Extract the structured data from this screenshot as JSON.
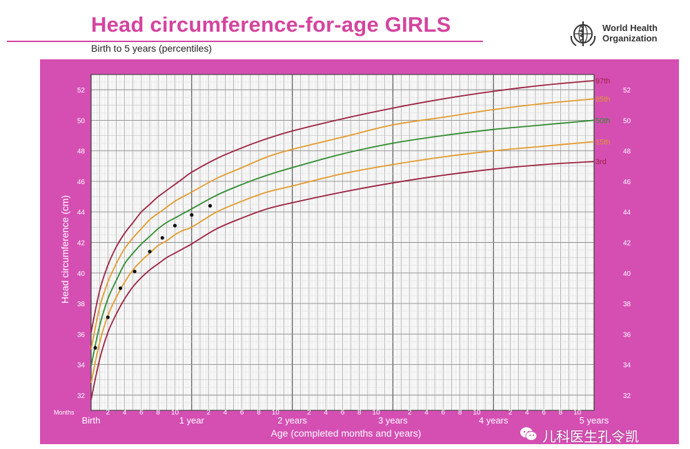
{
  "header": {
    "title": "Head circumference-for-age  GIRLS",
    "subtitle": "Birth to 5 years (percentiles)",
    "organization": "World Health\nOrganization"
  },
  "watermark": {
    "text": "儿科医生孔令凯",
    "icon": "wechat-icon"
  },
  "colors": {
    "brand": "#d4449f",
    "panel": "#d54fb3",
    "p3_97": "#9b2040",
    "p15_85": "#e29a2c",
    "p50": "#2e8b2e",
    "points": "#111111"
  },
  "chart_data": {
    "type": "line",
    "xlabel": "Age (completed months and years)",
    "ylabel": "Head circumference (cm)",
    "x_units_label": "Months",
    "xlim": [
      0,
      60
    ],
    "ylim": [
      31,
      53
    ],
    "x_ticks": [
      {
        "x": 0,
        "label": "Birth"
      },
      {
        "x": 2,
        "label": "2"
      },
      {
        "x": 4,
        "label": "4"
      },
      {
        "x": 6,
        "label": "6"
      },
      {
        "x": 8,
        "label": "8"
      },
      {
        "x": 10,
        "label": "10"
      },
      {
        "x": 12,
        "label": "1 year"
      },
      {
        "x": 14,
        "label": "2"
      },
      {
        "x": 16,
        "label": "4"
      },
      {
        "x": 18,
        "label": "6"
      },
      {
        "x": 20,
        "label": "8"
      },
      {
        "x": 22,
        "label": "10"
      },
      {
        "x": 24,
        "label": "2 years"
      },
      {
        "x": 26,
        "label": "2"
      },
      {
        "x": 28,
        "label": "4"
      },
      {
        "x": 30,
        "label": "6"
      },
      {
        "x": 32,
        "label": "8"
      },
      {
        "x": 34,
        "label": "10"
      },
      {
        "x": 36,
        "label": "3 years"
      },
      {
        "x": 38,
        "label": "2"
      },
      {
        "x": 40,
        "label": "4"
      },
      {
        "x": 42,
        "label": "6"
      },
      {
        "x": 44,
        "label": "8"
      },
      {
        "x": 46,
        "label": "10"
      },
      {
        "x": 48,
        "label": "4 years"
      },
      {
        "x": 50,
        "label": "2"
      },
      {
        "x": 52,
        "label": "4"
      },
      {
        "x": 54,
        "label": "6"
      },
      {
        "x": 56,
        "label": "8"
      },
      {
        "x": 58,
        "label": "10"
      },
      {
        "x": 60,
        "label": "5 years"
      }
    ],
    "y_ticks": [
      32,
      34,
      36,
      38,
      40,
      42,
      44,
      46,
      48,
      50,
      52
    ],
    "grid": true,
    "series": [
      {
        "name": "97th",
        "color_key": "p3_97",
        "x": [
          0,
          1,
          2,
          3,
          4,
          5,
          6,
          7,
          8,
          9,
          10,
          11,
          12,
          15,
          18,
          21,
          24,
          30,
          36,
          42,
          48,
          54,
          60
        ],
        "y": [
          36.1,
          38.8,
          40.5,
          41.7,
          42.6,
          43.3,
          44.0,
          44.5,
          45.0,
          45.4,
          45.8,
          46.2,
          46.6,
          47.5,
          48.2,
          48.8,
          49.3,
          50.1,
          50.8,
          51.4,
          51.9,
          52.3,
          52.6
        ]
      },
      {
        "name": "85th",
        "color_key": "p15_85",
        "x": [
          0,
          1,
          2,
          3,
          4,
          5,
          6,
          7,
          8,
          9,
          10,
          11,
          12,
          15,
          18,
          21,
          24,
          30,
          36,
          42,
          48,
          54,
          60
        ],
        "y": [
          35.0,
          37.7,
          39.4,
          40.6,
          41.6,
          42.3,
          42.9,
          43.5,
          43.9,
          44.3,
          44.7,
          45.0,
          45.3,
          46.2,
          46.9,
          47.6,
          48.1,
          48.9,
          49.7,
          50.2,
          50.7,
          51.1,
          51.4
        ]
      },
      {
        "name": "50th",
        "color_key": "p50",
        "x": [
          0,
          1,
          2,
          3,
          4,
          5,
          6,
          7,
          8,
          9,
          10,
          11,
          12,
          15,
          18,
          21,
          24,
          30,
          36,
          42,
          48,
          54,
          60
        ],
        "y": [
          33.9,
          36.5,
          38.3,
          39.5,
          40.6,
          41.3,
          41.9,
          42.4,
          42.9,
          43.3,
          43.6,
          43.9,
          44.2,
          45.1,
          45.8,
          46.4,
          46.9,
          47.8,
          48.5,
          49.0,
          49.4,
          49.7,
          50.0
        ]
      },
      {
        "name": "15th",
        "color_key": "p15_85",
        "x": [
          0,
          1,
          2,
          3,
          4,
          5,
          6,
          7,
          8,
          9,
          10,
          11,
          12,
          15,
          18,
          21,
          24,
          30,
          36,
          42,
          48,
          54,
          60
        ],
        "y": [
          32.8,
          35.4,
          37.2,
          38.4,
          39.4,
          40.2,
          40.8,
          41.3,
          41.8,
          42.1,
          42.5,
          42.8,
          43.0,
          44.0,
          44.7,
          45.3,
          45.7,
          46.5,
          47.1,
          47.6,
          48.0,
          48.3,
          48.6
        ]
      },
      {
        "name": "3rd",
        "color_key": "p3_97",
        "x": [
          0,
          1,
          2,
          3,
          4,
          5,
          6,
          7,
          8,
          9,
          10,
          11,
          12,
          15,
          18,
          21,
          24,
          30,
          36,
          42,
          48,
          54,
          60
        ],
        "y": [
          31.7,
          34.3,
          36.1,
          37.3,
          38.3,
          39.1,
          39.7,
          40.2,
          40.6,
          41.0,
          41.3,
          41.6,
          41.9,
          42.9,
          43.6,
          44.2,
          44.6,
          45.3,
          45.9,
          46.4,
          46.8,
          47.1,
          47.3
        ]
      }
    ],
    "points": {
      "color_key": "points",
      "x": [
        0.5,
        2.0,
        3.5,
        5.2,
        7.0,
        8.5,
        10.0,
        12.0,
        14.2
      ],
      "y": [
        35.1,
        37.1,
        39.0,
        40.1,
        41.4,
        42.3,
        43.1,
        43.8,
        44.4
      ]
    }
  }
}
